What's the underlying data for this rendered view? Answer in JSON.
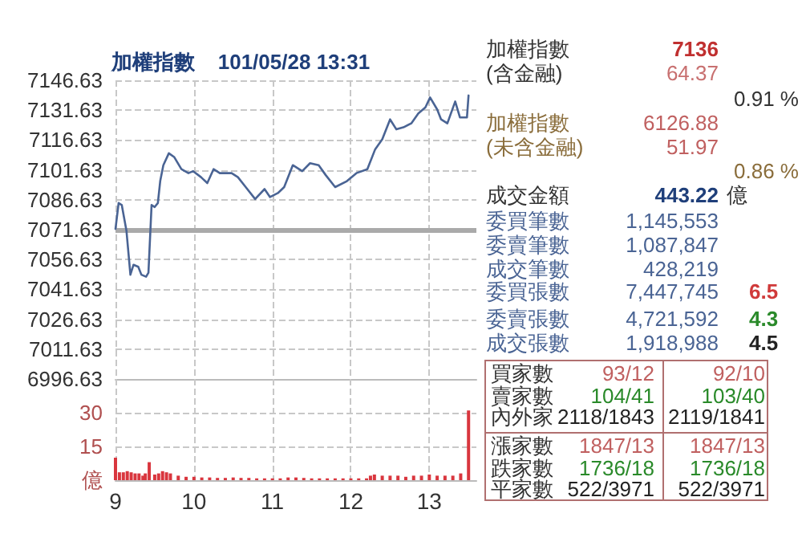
{
  "chart_data": [
    {
      "type": "line",
      "title": "加權指數    101/05/28 13:31",
      "color": "#4a6494",
      "marker": "none",
      "line_style": "solid",
      "x": [
        9.0,
        9.04,
        9.08,
        9.14,
        9.19,
        9.23,
        9.29,
        9.33,
        9.39,
        9.42,
        9.46,
        9.5,
        9.54,
        9.57,
        9.61,
        9.68,
        9.75,
        9.84,
        9.93,
        9.99,
        10.09,
        10.17,
        10.25,
        10.33,
        10.4,
        10.48,
        10.56,
        10.66,
        10.78,
        10.9,
        10.97,
        11.07,
        11.15,
        11.26,
        11.38,
        11.48,
        11.59,
        11.68,
        11.8,
        11.95,
        12.07,
        12.21,
        12.31,
        12.4,
        12.5,
        12.58,
        12.67,
        12.77,
        12.86,
        12.95,
        13.01,
        13.1,
        13.15,
        13.23,
        13.33,
        13.39,
        13.48,
        13.5
      ],
      "values": [
        7072,
        7085,
        7084,
        7071,
        7049,
        7054,
        7053,
        7049,
        7048,
        7050,
        7084,
        7083,
        7085,
        7096,
        7104,
        7110,
        7108,
        7102,
        7100,
        7101,
        7098,
        7095,
        7102,
        7100,
        7100,
        7100,
        7098,
        7093,
        7087,
        7092,
        7088,
        7090,
        7093,
        7104,
        7101,
        7105,
        7104,
        7099,
        7093,
        7096,
        7100,
        7102,
        7112,
        7117,
        7127,
        7122,
        7123,
        7125,
        7130,
        7133,
        7138,
        7132,
        7127,
        7125,
        7136,
        7128,
        7128,
        7139
      ],
      "xlim": [
        9,
        13.6
      ],
      "xticks": [
        9,
        10,
        11,
        12,
        13
      ],
      "ylim": [
        6996.63,
        7146.63
      ],
      "yticks": [
        6996.63,
        7011.63,
        7026.63,
        7041.63,
        7056.63,
        7071.63,
        7086.63,
        7101.63,
        7116.63,
        7131.63,
        7146.63
      ],
      "grid": true,
      "tick_labels": "y",
      "ref_lines": [
        {
          "axis": "y",
          "value": 7071.63,
          "color": "#aaaaaa"
        }
      ]
    },
    {
      "type": "bar",
      "color": "#d9363e",
      "x": [
        9.0,
        9.05,
        9.1,
        9.15,
        9.2,
        9.25,
        9.3,
        9.35,
        9.38,
        9.43,
        9.5,
        9.55,
        9.6,
        9.65,
        9.7,
        9.8,
        9.9,
        10.0,
        10.1,
        10.2,
        10.3,
        10.4,
        10.5,
        10.6,
        10.7,
        10.8,
        10.9,
        11.0,
        11.1,
        11.2,
        11.3,
        11.4,
        11.5,
        11.6,
        11.7,
        11.8,
        11.9,
        12.0,
        12.1,
        12.2,
        12.25,
        12.3,
        12.4,
        12.5,
        12.6,
        12.7,
        12.8,
        12.9,
        13.0,
        13.1,
        13.2,
        13.3,
        13.4,
        13.5
      ],
      "values": [
        10,
        3.5,
        3.5,
        4,
        3.5,
        3,
        3,
        2,
        3,
        8,
        2.5,
        3,
        4,
        3.5,
        3,
        2,
        1.5,
        1.5,
        1.2,
        1.2,
        1,
        1,
        1.2,
        1,
        1,
        0.8,
        0.8,
        0.8,
        0.8,
        1.2,
        1.2,
        1,
        0.8,
        0.8,
        0.8,
        0.8,
        0.8,
        0.8,
        0.8,
        0.8,
        2,
        2.5,
        2,
        2,
        2,
        1.5,
        2,
        2,
        2.5,
        2,
        2,
        2,
        3,
        31
      ],
      "xlim": [
        9,
        13.6
      ],
      "xticks": [
        9,
        10,
        11,
        12,
        13
      ],
      "ylim": [
        0,
        45
      ],
      "yticks": [
        {
          "value": 0,
          "label": "億"
        },
        15,
        30
      ],
      "grid": true
    },
    {
      "type": "other",
      "annotations": [
        "加權指數",
        "7136",
        "(含金融)",
        "64.37",
        "0.91 %",
        "加權指數",
        "6126.88",
        "(未含金融)",
        "51.97",
        "0.86 %",
        "成交金額",
        "443.22",
        "億",
        "委買筆數",
        "1,145,553",
        "委賣筆數",
        "1,087,847",
        "成交筆數",
        "428,219",
        "委買張數",
        "7,447,745",
        "6.5",
        "委賣張數",
        "4,721,592",
        "4.3",
        "成交張數",
        "1,918,988",
        "4.5",
        "買家數",
        "93/12",
        "92/10",
        "賣家數",
        "104/41",
        "103/40",
        "內外家",
        "2118/1843",
        "2119/1841",
        "漲家數",
        "1847/13",
        "1847/13",
        "跌家數",
        "1736/18",
        "1736/18",
        "平家數",
        "522/3971",
        "522/3971"
      ]
    }
  ]
}
